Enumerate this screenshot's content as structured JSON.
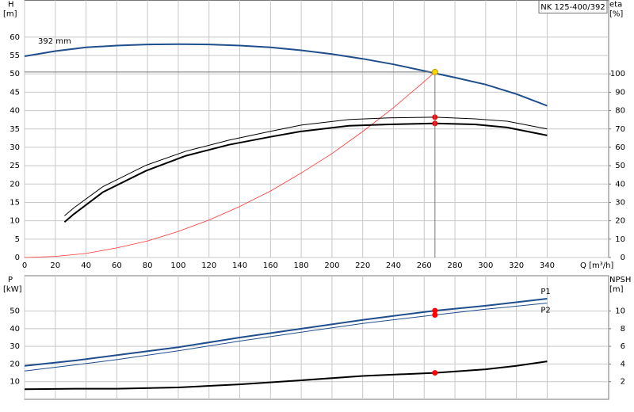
{
  "chart_data": [
    {
      "type": "line",
      "title": "NK 125-400/392",
      "annotation": "392 mm",
      "xlabel": "Q [m³/h]",
      "ylabel": "H",
      "yunit": "[m]",
      "y2label": "eta",
      "y2unit": "[%]",
      "xlim": [
        0,
        380
      ],
      "xticks": [
        0,
        20,
        40,
        60,
        80,
        100,
        120,
        140,
        160,
        180,
        200,
        220,
        240,
        260,
        280,
        300,
        320,
        340
      ],
      "ylim": [
        0,
        70
      ],
      "yticks": [
        0,
        5,
        10,
        15,
        20,
        25,
        30,
        35,
        40,
        45,
        50,
        55,
        60
      ],
      "y2lim": [
        0,
        140
      ],
      "y2ticks": [
        0,
        10,
        20,
        30,
        40,
        50,
        60,
        70,
        80,
        90,
        100
      ],
      "grid": true,
      "series": [
        {
          "color": "#1f4e8c",
          "width": 2,
          "x": [
            0,
            20,
            40,
            60,
            80,
            100,
            120,
            140,
            160,
            180,
            200,
            220,
            240,
            260,
            280,
            300,
            320,
            340
          ],
          "values": [
            54.8,
            56.2,
            57.2,
            57.7,
            58.0,
            58.1,
            58.0,
            57.7,
            57.2,
            56.4,
            55.4,
            54.1,
            52.6,
            50.8,
            49.0,
            47.1,
            44.5,
            41.3
          ]
        },
        {
          "color": "#ff3333",
          "width": 0.8,
          "x": [
            0,
            20,
            40,
            60,
            80,
            100,
            120,
            140,
            160,
            180,
            200,
            220,
            240,
            260,
            267
          ],
          "values": [
            0,
            0.3,
            1.1,
            2.6,
            4.5,
            7.1,
            10.2,
            13.9,
            18.1,
            23.0,
            28.3,
            34.3,
            40.8,
            47.9,
            50.5
          ]
        },
        {
          "color": "#000000",
          "width": 1,
          "axis": "y2",
          "x": [
            26,
            32,
            51,
            79,
            105,
            133,
            160,
            180,
            211,
            237,
            267,
            293,
            314,
            340
          ],
          "values": [
            22.7,
            27,
            38.6,
            50.2,
            57.9,
            63.9,
            68.7,
            72.1,
            75.1,
            76,
            76.4,
            75.5,
            74.2,
            70
          ]
        },
        {
          "color": "#000000",
          "width": 2,
          "axis": "y2",
          "x": [
            26,
            32,
            51,
            79,
            105,
            133,
            160,
            180,
            211,
            237,
            267,
            293,
            314,
            340
          ],
          "values": [
            19.3,
            23.6,
            35.6,
            47.2,
            55.4,
            61.4,
            65.7,
            68.7,
            71.7,
            72.5,
            73,
            72.5,
            70.8,
            66.5
          ]
        },
        {
          "color": "#ff0000",
          "marker": true,
          "axis": "y2",
          "x": [
            267,
            267
          ],
          "values": [
            76.4,
            73
          ]
        },
        {
          "color": "#ffd700",
          "marker": true,
          "crosshair": true,
          "x": [
            267
          ],
          "values": [
            50.5
          ]
        }
      ]
    },
    {
      "type": "line",
      "ylabel": "P",
      "yunit": "[kW]",
      "y2label": "NPSH",
      "y2unit": "[m]",
      "xlim": [
        0,
        380
      ],
      "ylim": [
        0,
        70
      ],
      "yticks": [
        10,
        20,
        30,
        40,
        50
      ],
      "y2lim": [
        0,
        14
      ],
      "y2ticks": [
        2,
        4,
        6,
        8,
        10
      ],
      "grid": true,
      "series": [
        {
          "name": "P1",
          "color": "#1f4e8c",
          "width": 2,
          "x": [
            0,
            33,
            60,
            100,
            140,
            180,
            220,
            267,
            300,
            340
          ],
          "values": [
            19,
            22,
            25,
            29.5,
            35,
            40,
            45,
            50.2,
            53,
            57
          ]
        },
        {
          "name": "P2",
          "color": "#1f4e8c",
          "width": 1,
          "x": [
            0,
            33,
            60,
            100,
            140,
            180,
            220,
            267,
            300,
            340
          ],
          "values": [
            16,
            19.5,
            22.5,
            27.5,
            33,
            38,
            43,
            47.8,
            51,
            54.5
          ]
        },
        {
          "color": "#000000",
          "width": 2,
          "axis": "y2",
          "x": [
            0,
            33,
            60,
            100,
            140,
            180,
            220,
            267,
            300,
            320,
            340
          ],
          "values": [
            1.15,
            1.2,
            1.2,
            1.35,
            1.7,
            2.15,
            2.65,
            3.0,
            3.4,
            3.8,
            4.3
          ]
        },
        {
          "color": "#ff0000",
          "marker": true,
          "x": [
            267,
            267
          ],
          "values": [
            50.2,
            47.8
          ]
        },
        {
          "color": "#ff0000",
          "marker": true,
          "axis": "y2",
          "x": [
            267
          ],
          "values": [
            3.0
          ]
        }
      ]
    }
  ]
}
